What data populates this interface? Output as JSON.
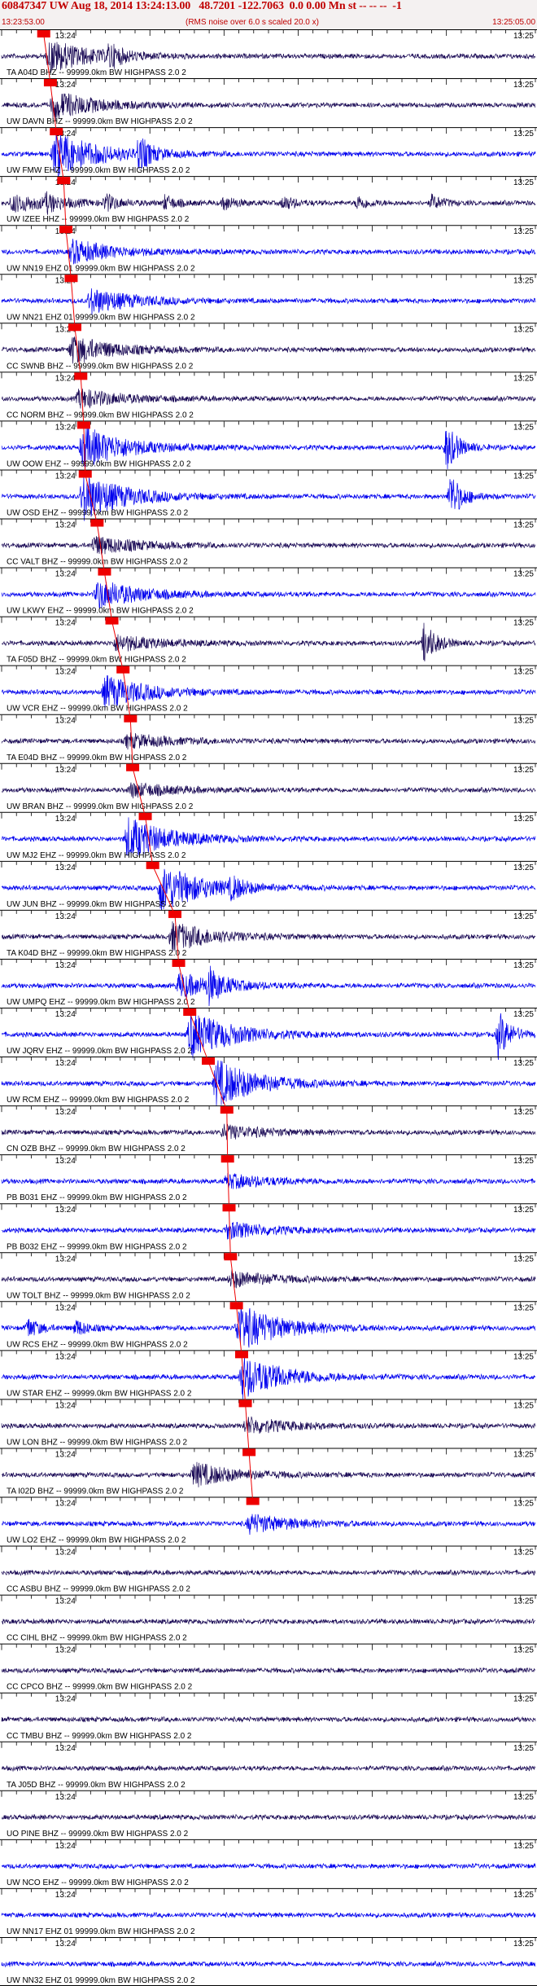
{
  "header": {
    "title": "60847347 UW Aug 18, 2014 13:24:13.00   48.7201 -122.7063  0.0 0.00 Mn st -- -- --  -1",
    "start_time": "13:23:53.00",
    "note": "(RMS noise over 6.0 s scaled 20.0 x)",
    "end_time": "13:25:05.00"
  },
  "colors": {
    "trace_blue": "#0000ee",
    "trace_dark": "#1a0a55",
    "pick": "#ee0000",
    "header_text": "#c00000"
  },
  "tick_labels": {
    "left": "13:24",
    "right": "13:25"
  },
  "chart_data": {
    "type": "waveform-record-section",
    "x_range_seconds": [
      0,
      72
    ],
    "x_start": "13:23:53.00",
    "x_end": "13:25:05.00",
    "event_origin": "13:24:13.00",
    "traces": [
      {
        "label": "TA A04D BHZ -- 99999.0km BW  HIGHPASS  2.0  2",
        "color": "dark",
        "pick_s": 4.8,
        "pick_text": "",
        "burst_s": 6.5,
        "burst_amp": 0.7,
        "events": [
          {
            "s": 14.5,
            "a": 0.45
          }
        ]
      },
      {
        "label": "UW DAVN BHZ -- 99999.0km BW  HIGHPASS  2.0  2",
        "color": "dark",
        "pick_s": 5.7,
        "pick_text": "",
        "burst_s": 7.0,
        "burst_amp": 0.6,
        "events": []
      },
      {
        "label": "UW FMW EHZ -- 99999.0km BW  HIGHPASS  2.0  2",
        "color": "blue",
        "pick_s": 6.5,
        "pick_text": "",
        "burst_s": 7.2,
        "burst_amp": 1.0,
        "events": [
          {
            "s": 18.5,
            "a": 0.7
          }
        ]
      },
      {
        "label": "UW IZEE HHZ -- 99999.0km BW  HIGHPASS  2.0  2",
        "color": "dark",
        "pick_s": 7.5,
        "pick_text": "",
        "burst_s": 1.5,
        "burst_amp": 0.35,
        "events": [
          {
            "s": 6.0,
            "a": 0.3
          },
          {
            "s": 14.0,
            "a": 0.35
          },
          {
            "s": 22.0,
            "a": 0.3
          },
          {
            "s": 30.0,
            "a": 0.3
          },
          {
            "s": 38.0,
            "a": 0.3
          },
          {
            "s": 48.0,
            "a": 0.3
          },
          {
            "s": 58.0,
            "a": 0.3
          }
        ]
      },
      {
        "label": "UW NN19 EHZ 01 99999.0km BW  HIGHPASS  2.0  2",
        "color": "blue",
        "pick_s": 7.8,
        "pick_text": "",
        "burst_s": 9.5,
        "burst_amp": 0.5,
        "events": []
      },
      {
        "label": "UW NN21 EHZ 01 99999.0km BW  HIGHPASS  2.0  2",
        "color": "blue",
        "pick_s": 8.5,
        "pick_text": "",
        "burst_s": 12.0,
        "burst_amp": 0.55,
        "events": []
      },
      {
        "label": "CC SWNB BHZ -- 99999.0km BW  HIGHPASS  2.0  2",
        "color": "dark",
        "pick_s": 9.0,
        "pick_text": "",
        "burst_s": 9.5,
        "burst_amp": 0.6,
        "events": []
      },
      {
        "label": "CC NORM BHZ -- 99999.0km BW  HIGHPASS  2.0  2",
        "color": "dark",
        "pick_s": 9.8,
        "pick_text": "",
        "burst_s": 10.5,
        "burst_amp": 0.4,
        "events": []
      },
      {
        "label": "UW OOW EHZ -- 99999.0km BW  HIGHPASS  2.0  2",
        "color": "blue",
        "pick_s": 10.2,
        "pick_text": "",
        "burst_s": 11.0,
        "burst_amp": 0.9,
        "events": [
          {
            "s": 60.0,
            "a": 1.0
          }
        ]
      },
      {
        "label": "UW OSD EHZ -- 99999.0km BW  HIGHPASS  2.0  2",
        "color": "blue",
        "pick_s": 10.4,
        "pick_text": "",
        "burst_s": 11.0,
        "burst_amp": 1.0,
        "events": [
          {
            "s": 60.5,
            "a": 1.0
          }
        ]
      },
      {
        "label": "CC VALT BHZ -- 99999.0km BW  HIGHPASS  2.0  2",
        "color": "dark",
        "pick_s": 12.0,
        "pick_text": "",
        "burst_s": 12.5,
        "burst_amp": 0.4,
        "events": []
      },
      {
        "label": "UW LKWY EHZ -- 99999.0km BW  HIGHPASS  2.0  2",
        "color": "blue",
        "pick_s": 13.0,
        "pick_text": "",
        "burst_s": 13.0,
        "burst_amp": 0.6,
        "events": []
      },
      {
        "label": "TA F05D BHZ -- 99999.0km BW  HIGHPASS  2.0  2",
        "color": "dark",
        "pick_s": 14.0,
        "pick_text": "",
        "burst_s": 15.5,
        "burst_amp": 0.35,
        "events": [
          {
            "s": 57.0,
            "a": 0.9
          }
        ]
      },
      {
        "label": "UW VCR EHZ -- 99999.0km BW  HIGHPASS  2.0  2",
        "color": "blue",
        "pick_s": 15.5,
        "pick_text": "",
        "burst_s": 14.0,
        "burst_amp": 0.7,
        "events": []
      },
      {
        "label": "TA E04D BHZ -- 99999.0km BW  HIGHPASS  2.0  2",
        "color": "dark",
        "pick_s": 16.5,
        "pick_text": "",
        "burst_s": 17.0,
        "burst_amp": 0.3,
        "events": []
      },
      {
        "label": "UW BRAN BHZ -- 99999.0km BW  HIGHPASS  2.0  2",
        "color": "dark",
        "pick_s": 16.8,
        "pick_text": "",
        "burst_s": 17.5,
        "burst_amp": 0.3,
        "events": []
      },
      {
        "label": "UW MJ2 EHZ -- 99999.0km BW  HIGHPASS  2.0  2",
        "color": "blue",
        "pick_s": 18.5,
        "pick_text": "",
        "burst_s": 17.0,
        "burst_amp": 0.9,
        "events": []
      },
      {
        "label": "UW JUN BHZ -- 99999.0km BW  HIGHPASS  2.0  2",
        "color": "blue",
        "pick_s": 19.5,
        "pick_text": "",
        "burst_s": 21.5,
        "burst_amp": 1.0,
        "events": [
          {
            "s": 31.0,
            "a": 0.4
          }
        ]
      },
      {
        "label": "TA K04D BHZ -- 99999.0km BW  HIGHPASS  2.0  2",
        "color": "dark",
        "pick_s": 22.5,
        "pick_text": "",
        "burst_s": 23.0,
        "burst_amp": 0.6,
        "events": []
      },
      {
        "label": "UW UMPQ EHZ -- 99999.0km BW  HIGHPASS  2.0  2",
        "color": "blue",
        "pick_s": 23.0,
        "pick_text": "",
        "burst_s": 24.0,
        "burst_amp": 0.5,
        "events": [
          {
            "s": 28.0,
            "a": 0.6
          }
        ]
      },
      {
        "label": "UW JQRV EHZ -- 99999.0km BW  HIGHPASS  2.0  2",
        "color": "blue",
        "pick_s": 24.5,
        "pick_text": "",
        "burst_s": 25.5,
        "burst_amp": 1.0,
        "events": [
          {
            "s": 67.0,
            "a": 1.0
          }
        ]
      },
      {
        "label": "UW RCM EHZ -- 99999.0km BW  HIGHPASS  2.0  2",
        "color": "blue",
        "pick_s": 27.0,
        "pick_text": "",
        "burst_s": 29.0,
        "burst_amp": 1.0,
        "events": []
      },
      {
        "label": "CN OZB BHZ -- 99999.0km BW  HIGHPASS  2.0  2",
        "color": "dark",
        "pick_s": 29.5,
        "pick_text": "",
        "burst_s": 30.0,
        "burst_amp": 0.3,
        "events": []
      },
      {
        "label": "PB B031 EHZ -- 99999.0km BW  HIGHPASS  2.0  2",
        "color": "blue",
        "pick_s": 29.6,
        "pick_text": "",
        "burst_s": 30.5,
        "burst_amp": 0.3,
        "events": []
      },
      {
        "label": "PB B032 EHZ -- 99999.0km BW  HIGHPASS  2.0  2",
        "color": "blue",
        "pick_s": 29.8,
        "pick_text": "",
        "burst_s": 30.5,
        "burst_amp": 0.35,
        "events": []
      },
      {
        "label": "UW TOLT BHZ -- 99999.0km BW  HIGHPASS  2.0  2",
        "color": "dark",
        "pick_s": 30.0,
        "pick_text": "",
        "burst_s": 31.0,
        "burst_amp": 0.35,
        "events": []
      },
      {
        "label": "UW RCS EHZ -- 99999.0km BW  HIGHPASS  2.0  2",
        "color": "blue",
        "pick_s": 30.8,
        "pick_text": "",
        "burst_s": 32.0,
        "burst_amp": 1.0,
        "events": [
          {
            "s": 3.5,
            "a": 0.45
          },
          {
            "s": 10.0,
            "a": 0.35
          }
        ]
      },
      {
        "label": "UW STAR EHZ -- 99999.0km BW  HIGHPASS  2.0  2",
        "color": "blue",
        "pick_s": 31.5,
        "pick_text": "",
        "burst_s": 32.5,
        "burst_amp": 0.9,
        "events": []
      },
      {
        "label": "UW LON BHZ -- 99999.0km BW  HIGHPASS  2.0  2",
        "color": "dark",
        "pick_s": 32.0,
        "pick_text": "",
        "burst_s": 33.0,
        "burst_amp": 0.35,
        "events": []
      },
      {
        "label": "TA I02D BHZ -- 99999.0km BW  HIGHPASS  2.0  2",
        "color": "dark",
        "pick_s": 32.5,
        "pick_text": "",
        "burst_s": 26.0,
        "burst_amp": 0.5,
        "events": []
      },
      {
        "label": "UW LO2 EHZ -- 99999.0km BW  HIGHPASS  2.0  2",
        "color": "blue",
        "pick_s": 33.0,
        "pick_text": "",
        "burst_s": 33.5,
        "burst_amp": 0.4,
        "events": []
      },
      {
        "label": "CC ASBU BHZ -- 99999.0km BW  HIGHPASS  2.0  2",
        "color": "dark",
        "pick_s": null,
        "pick_text": "",
        "burst_s": null,
        "burst_amp": 0,
        "events": []
      },
      {
        "label": "CC CIHL BHZ -- 99999.0km BW  HIGHPASS  2.0  2",
        "color": "dark",
        "pick_s": null,
        "pick_text": "",
        "burst_s": null,
        "burst_amp": 0,
        "events": []
      },
      {
        "label": "CC CPCO BHZ -- 99999.0km BW  HIGHPASS  2.0  2",
        "color": "dark",
        "pick_s": null,
        "pick_text": "",
        "burst_s": null,
        "burst_amp": 0,
        "events": []
      },
      {
        "label": "CC TMBU BHZ -- 99999.0km BW  HIGHPASS  2.0  2",
        "color": "dark",
        "pick_s": null,
        "pick_text": "",
        "burst_s": null,
        "burst_amp": 0,
        "events": []
      },
      {
        "label": "TA J05D BHZ -- 99999.0km BW  HIGHPASS  2.0  2",
        "color": "dark",
        "pick_s": null,
        "pick_text": "",
        "burst_s": null,
        "burst_amp": 0,
        "events": []
      },
      {
        "label": "UO PINE BHZ -- 99999.0km BW  HIGHPASS  2.0  2",
        "color": "dark",
        "pick_s": null,
        "pick_text": "",
        "burst_s": null,
        "burst_amp": 0,
        "events": []
      },
      {
        "label": "UW NCO EHZ -- 99999.0km BW  HIGHPASS  2.0  2",
        "color": "blue",
        "pick_s": null,
        "pick_text": "",
        "burst_s": null,
        "burst_amp": 0,
        "events": []
      },
      {
        "label": "UW NN17 EHZ 01 99999.0km BW  HIGHPASS  2.0  2",
        "color": "blue",
        "pick_s": null,
        "pick_text": "",
        "burst_s": null,
        "burst_amp": 0,
        "events": []
      },
      {
        "label": "UW NN32 EHZ 01 99999.0km BW  HIGHPASS  2.0  2",
        "color": "blue",
        "pick_s": null,
        "pick_text": "",
        "burst_s": null,
        "burst_amp": 0,
        "events": []
      }
    ]
  }
}
